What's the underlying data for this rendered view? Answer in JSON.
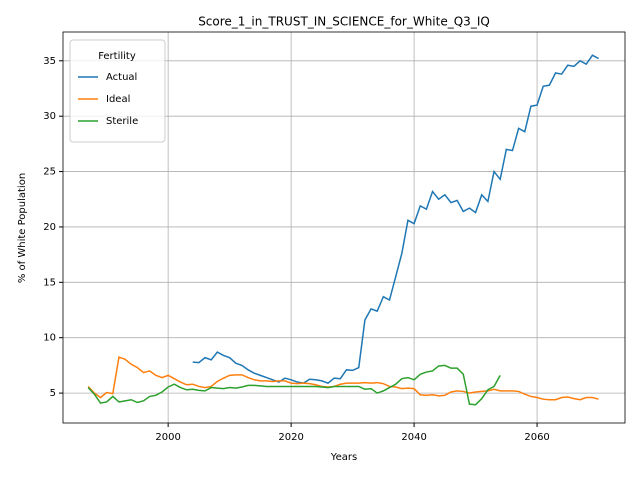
{
  "chart_data": {
    "type": "line",
    "title": "Score_1_in_TRUST_IN_SCIENCE_for_White_Q3_IQ",
    "x_label": "Years",
    "y_label": "% of White Population",
    "legend_title": "Fertility",
    "legend": "upper left",
    "grid": true,
    "xlim": [
      1982.9,
      2074.3
    ],
    "ylim": [
      2.3,
      37.6
    ],
    "xticks": [
      2000,
      2020,
      2040,
      2060
    ],
    "yticks": [
      5,
      10,
      15,
      20,
      25,
      30,
      35
    ],
    "x": [
      1987,
      1988,
      1989,
      1990,
      1991,
      1992,
      1993,
      1994,
      1995,
      1996,
      1997,
      1998,
      1999,
      2000,
      2001,
      2002,
      2003,
      2004,
      2005,
      2006,
      2007,
      2008,
      2009,
      2010,
      2011,
      2012,
      2013,
      2014,
      2015,
      2016,
      2017,
      2018,
      2019,
      2020,
      2021,
      2022,
      2023,
      2024,
      2025,
      2026,
      2027,
      2028,
      2029,
      2030,
      2031,
      2032,
      2033,
      2034,
      2035,
      2036,
      2037,
      2038,
      2039,
      2040,
      2041,
      2042,
      2043,
      2044,
      2045,
      2046,
      2047,
      2048,
      2049,
      2050,
      2051,
      2052,
      2053,
      2054,
      2055,
      2056,
      2057,
      2058,
      2059,
      2060,
      2061,
      2062,
      2063,
      2064,
      2065,
      2066,
      2067,
      2068,
      2069,
      2070
    ],
    "series": [
      {
        "name": "Actual",
        "color": "#1f77b4",
        "values": [
          null,
          null,
          null,
          null,
          null,
          null,
          null,
          null,
          null,
          null,
          null,
          null,
          null,
          null,
          null,
          null,
          null,
          7.8,
          7.75,
          8.2,
          8.0,
          8.7,
          8.4,
          8.2,
          7.7,
          7.5,
          7.1,
          6.8,
          6.6,
          6.4,
          6.2,
          6.0,
          6.35,
          6.2,
          6.0,
          5.9,
          6.25,
          6.2,
          6.1,
          5.9,
          6.35,
          6.3,
          7.1,
          7.05,
          7.3,
          11.6,
          12.6,
          12.4,
          13.7,
          13.4,
          15.5,
          17.6,
          20.6,
          20.3,
          21.9,
          21.6,
          23.2,
          22.5,
          22.9,
          22.2,
          22.4,
          21.4,
          21.7,
          21.3,
          22.9,
          22.3,
          25.0,
          24.3,
          27.0,
          26.9,
          28.9,
          28.6,
          30.9,
          31.0,
          32.7,
          32.8,
          33.9,
          33.8,
          34.6,
          34.5,
          35.0,
          34.7,
          35.5,
          35.2
        ]
      },
      {
        "name": "Ideal",
        "color": "#ff7f0e",
        "values": [
          5.6,
          5.0,
          4.6,
          5.05,
          4.95,
          8.25,
          8.05,
          7.6,
          7.3,
          6.85,
          7.0,
          6.6,
          6.4,
          6.6,
          6.3,
          6.0,
          5.75,
          5.8,
          5.6,
          5.5,
          5.6,
          6.05,
          6.35,
          6.6,
          6.65,
          6.65,
          6.4,
          6.2,
          6.1,
          6.1,
          6.05,
          6.1,
          6.1,
          5.9,
          5.85,
          5.9,
          5.85,
          5.75,
          5.6,
          5.55,
          5.6,
          5.8,
          5.9,
          5.9,
          5.9,
          5.95,
          5.9,
          5.95,
          5.85,
          5.6,
          5.55,
          5.4,
          5.45,
          5.4,
          4.85,
          4.8,
          4.85,
          4.75,
          4.8,
          5.1,
          5.2,
          5.15,
          5.0,
          5.1,
          5.15,
          5.2,
          5.35,
          5.2,
          5.2,
          5.2,
          5.15,
          4.9,
          4.7,
          4.6,
          4.45,
          4.4,
          4.4,
          4.6,
          4.65,
          4.5,
          4.4,
          4.6,
          4.6,
          4.45
        ]
      },
      {
        "name": "Sterile",
        "color": "#2ca02c",
        "values": [
          5.5,
          4.9,
          4.1,
          4.2,
          4.7,
          4.2,
          4.3,
          4.4,
          4.15,
          4.3,
          4.7,
          4.8,
          5.1,
          5.55,
          5.8,
          5.5,
          5.3,
          5.35,
          5.25,
          5.2,
          5.5,
          5.45,
          5.4,
          5.5,
          5.45,
          5.55,
          5.7,
          5.7,
          5.65,
          5.6,
          5.6,
          5.6,
          5.6,
          5.6,
          5.6,
          5.6,
          5.6,
          5.6,
          5.55,
          5.5,
          5.6,
          5.6,
          5.6,
          5.6,
          5.6,
          5.35,
          5.4,
          5.0,
          5.2,
          5.5,
          5.8,
          6.3,
          6.4,
          6.2,
          6.7,
          6.9,
          7.0,
          7.45,
          7.5,
          7.25,
          7.25,
          6.7,
          4.0,
          3.95,
          4.5,
          5.3,
          5.6,
          6.6,
          null,
          null,
          null,
          null,
          null,
          null,
          null,
          null,
          null,
          null,
          null,
          null,
          null,
          null,
          null,
          null
        ]
      }
    ]
  }
}
